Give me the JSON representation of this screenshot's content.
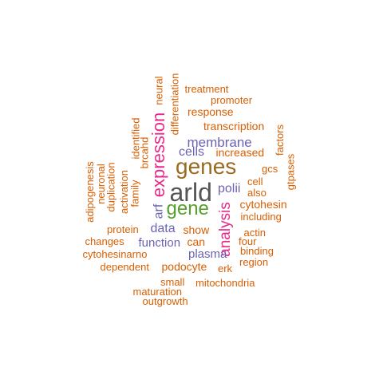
{
  "colors": {
    "orange": "#d95f02",
    "gray": "#555555",
    "brown": "#9a6a1e",
    "magenta": "#e7298a",
    "purple": "#6a63b5",
    "green": "#55a02a"
  },
  "words": [
    {
      "text": "arld",
      "color": "gray"
    },
    {
      "text": "genes",
      "color": "brown"
    },
    {
      "text": "expression",
      "color": "magenta"
    },
    {
      "text": "gene",
      "color": "green"
    },
    {
      "text": "analysis",
      "color": "magenta"
    },
    {
      "text": "membrane",
      "color": "purple"
    },
    {
      "text": "cells",
      "color": "purple"
    },
    {
      "text": "polii",
      "color": "purple"
    },
    {
      "text": "data",
      "color": "purple"
    },
    {
      "text": "arf",
      "color": "purple"
    },
    {
      "text": "function",
      "color": "purple"
    },
    {
      "text": "plasma",
      "color": "purple"
    },
    {
      "text": "transcription",
      "color": "orange"
    },
    {
      "text": "increased",
      "color": "orange"
    },
    {
      "text": "response",
      "color": "orange"
    },
    {
      "text": "promoter",
      "color": "orange"
    },
    {
      "text": "treatment",
      "color": "orange"
    },
    {
      "text": "neural",
      "color": "orange"
    },
    {
      "text": "differentiation",
      "color": "orange"
    },
    {
      "text": "identified",
      "color": "orange"
    },
    {
      "text": "brcahd",
      "color": "orange"
    },
    {
      "text": "factors",
      "color": "orange"
    },
    {
      "text": "gcs",
      "color": "orange"
    },
    {
      "text": "cell",
      "color": "orange"
    },
    {
      "text": "also",
      "color": "orange"
    },
    {
      "text": "gtpases",
      "color": "orange"
    },
    {
      "text": "cytohesin",
      "color": "orange"
    },
    {
      "text": "including",
      "color": "orange"
    },
    {
      "text": "actin",
      "color": "orange"
    },
    {
      "text": "four",
      "color": "orange"
    },
    {
      "text": "binding",
      "color": "orange"
    },
    {
      "text": "region",
      "color": "orange"
    },
    {
      "text": "erk",
      "color": "orange"
    },
    {
      "text": "show",
      "color": "orange"
    },
    {
      "text": "can",
      "color": "orange"
    },
    {
      "text": "protein",
      "color": "orange"
    },
    {
      "text": "podocyte",
      "color": "orange"
    },
    {
      "text": "dependent",
      "color": "orange"
    },
    {
      "text": "cytohesinarno",
      "color": "orange"
    },
    {
      "text": "changes",
      "color": "orange"
    },
    {
      "text": "small",
      "color": "orange"
    },
    {
      "text": "mitochondria",
      "color": "orange"
    },
    {
      "text": "maturation",
      "color": "orange"
    },
    {
      "text": "outgrowth",
      "color": "orange"
    },
    {
      "text": "family",
      "color": "orange"
    },
    {
      "text": "activation",
      "color": "orange"
    },
    {
      "text": "duplication",
      "color": "orange"
    },
    {
      "text": "neuronal",
      "color": "orange"
    },
    {
      "text": "adipogenesis",
      "color": "orange"
    }
  ]
}
